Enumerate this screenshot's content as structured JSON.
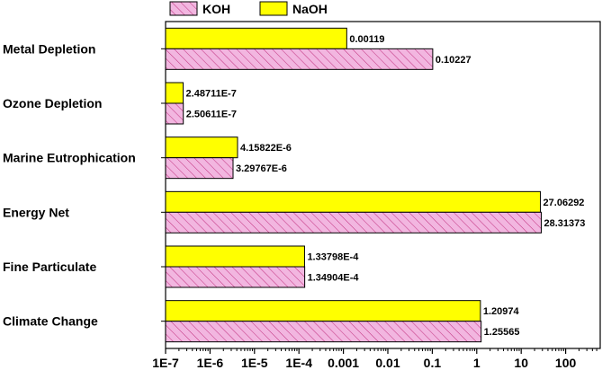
{
  "chart_data": {
    "type": "bar",
    "orientation": "horizontal",
    "x_scale": "log",
    "xlim": [
      1e-07,
      1000
    ],
    "x_ticks": [
      "1E-7",
      "1E-6",
      "1E-5",
      "1E-4",
      "0.001",
      "0.01",
      "0.1",
      "1",
      "10",
      "100"
    ],
    "categories": [
      "Metal Depletion",
      "Ozone Depletion",
      "Marine Eutrophication",
      "Energy Net",
      "Fine Particulate",
      "Climate Change"
    ],
    "series": [
      {
        "name": "KOH",
        "color": "#f2b6e0",
        "hatch": "diagonal",
        "values": [
          0.10227,
          2.50611e-07,
          3.29767e-06,
          28.31373,
          0.000134904,
          1.25565
        ],
        "labels": [
          "0.10227",
          "2.50611E-7",
          "3.29767E-6",
          "28.31373",
          "1.34904E-4",
          "1.25565"
        ]
      },
      {
        "name": "NaOH",
        "color": "#ffff00",
        "hatch": "none",
        "values": [
          0.00119,
          2.48711e-07,
          4.15822e-06,
          27.06292,
          0.000133798,
          1.20974
        ],
        "labels": [
          "0.00119",
          "2.48711E-7",
          "4.15822E-6",
          "27.06292",
          "1.33798E-4",
          "1.20974"
        ]
      }
    ],
    "legend_position": "top",
    "grid": false
  }
}
